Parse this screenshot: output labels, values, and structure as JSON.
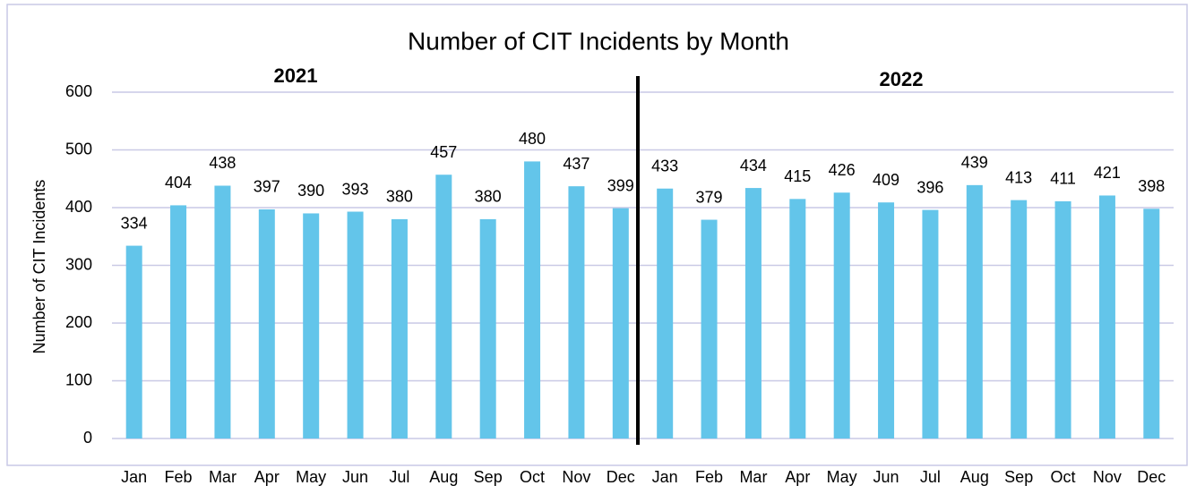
{
  "chart_data": {
    "type": "bar",
    "title": "Number of CIT Incidents by Month",
    "y_label": "Number of CIT Incidents",
    "annotations": [
      "2021",
      "2022"
    ],
    "categories": [
      "Jan",
      "Feb",
      "Mar",
      "Apr",
      "May",
      "Jun",
      "Jul",
      "Aug",
      "Sep",
      "Oct",
      "Nov",
      "Dec",
      "Jan",
      "Feb",
      "Mar",
      "Apr",
      "May",
      "Jun",
      "Jul",
      "Aug",
      "Sep",
      "Oct",
      "Nov",
      "Dec"
    ],
    "values": [
      334,
      404,
      438,
      397,
      390,
      393,
      380,
      457,
      380,
      480,
      437,
      399,
      433,
      379,
      434,
      415,
      426,
      409,
      396,
      439,
      413,
      411,
      421,
      398
    ],
    "color": "#63c5ea",
    "ylim": [
      0,
      600
    ],
    "yticks": [
      0,
      100,
      200,
      300,
      400,
      500,
      600
    ],
    "grid": true
  }
}
